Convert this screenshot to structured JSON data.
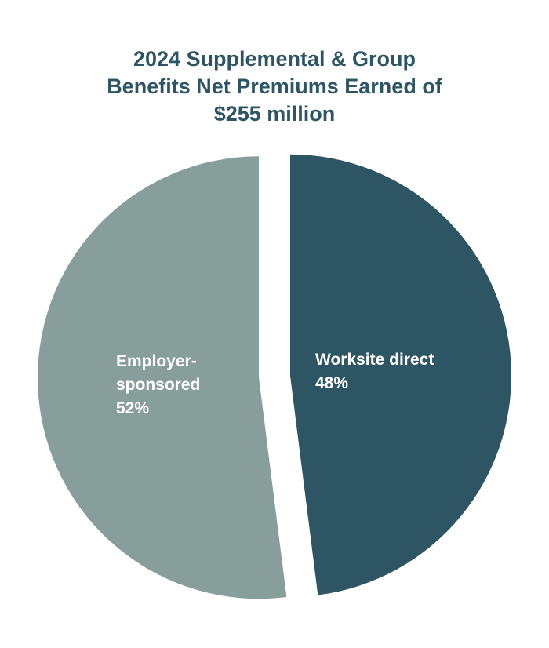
{
  "chart_data": {
    "type": "pie",
    "title_lines": [
      "2024 Supplemental & Group",
      "Benefits Net Premiums Earned of",
      "$255 million"
    ],
    "slices": [
      {
        "name_lines": [
          "Worksite direct"
        ],
        "value": 48,
        "label": "48%",
        "color": "#2e5563"
      },
      {
        "name_lines": [
          "Employer-",
          "sponsored"
        ],
        "value": 52,
        "label": "52%",
        "color": "#879e9a"
      }
    ],
    "legend": "none",
    "exploded": true
  }
}
